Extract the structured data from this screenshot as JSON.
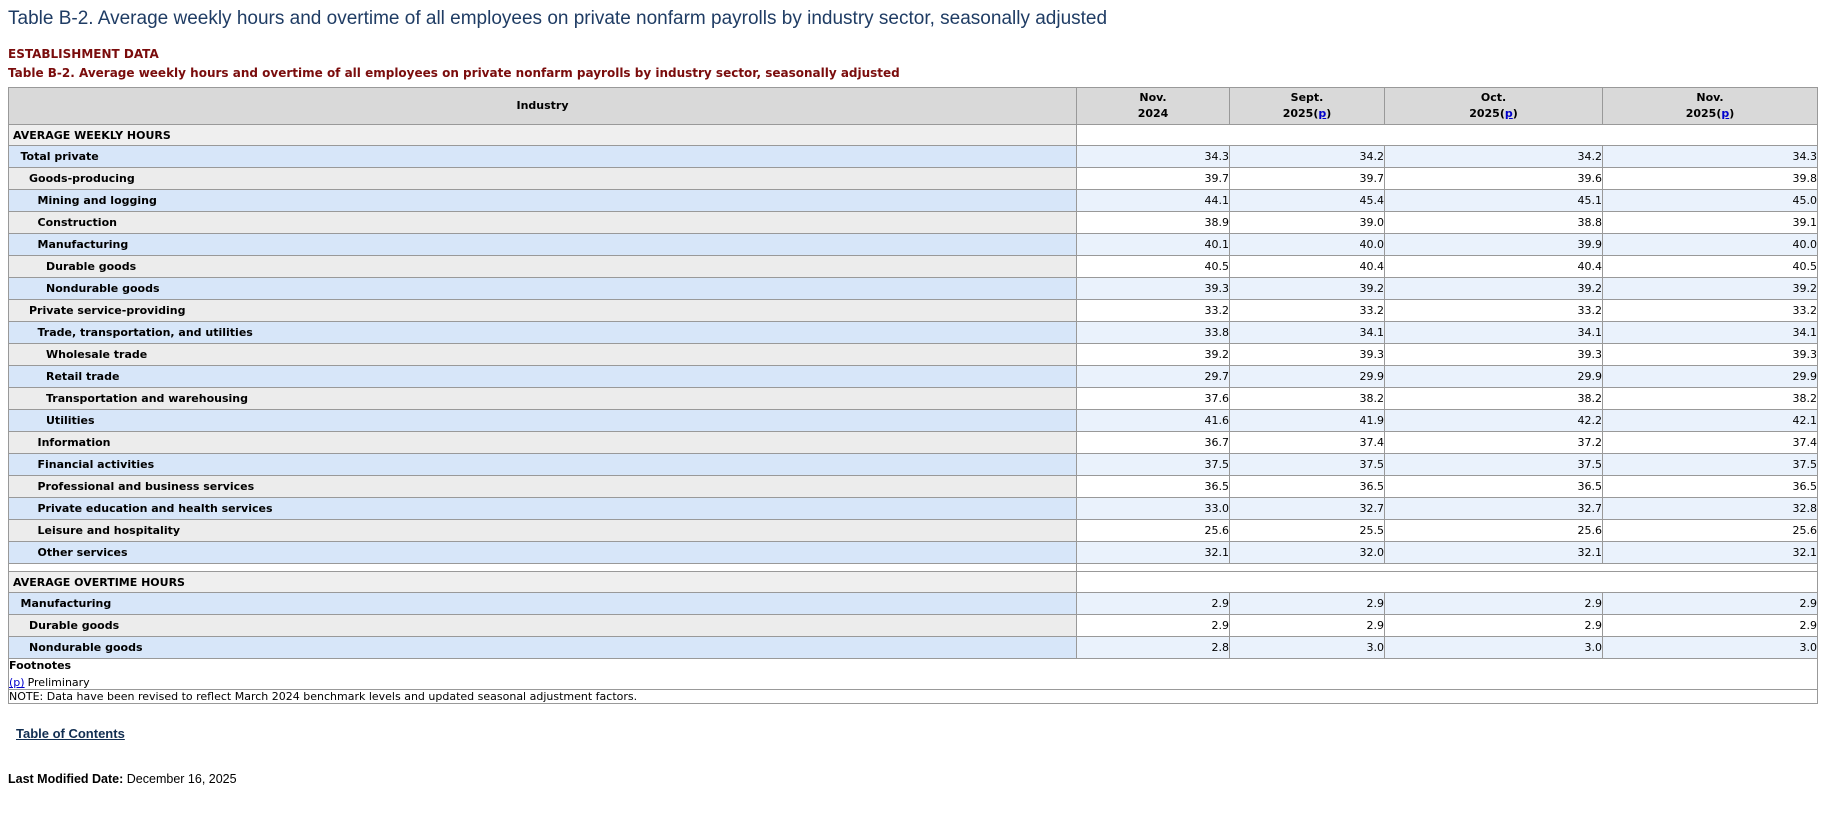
{
  "page": {
    "title": "Table B-2. Average weekly hours and overtime of all employees on private nonfarm payrolls by industry sector, seasonally adjusted",
    "section_label": "ESTABLISHMENT DATA",
    "table_title": "Table B-2. Average weekly hours and overtime of all employees on private nonfarm payrolls by industry sector, seasonally adjusted",
    "toc_link": "Table of Contents",
    "last_modified_label": "Last Modified Date:",
    "last_modified_value": "December 16, 2025"
  },
  "table": {
    "industry_header": "Industry",
    "columns": [
      {
        "month": "Nov.",
        "year": "2024",
        "preliminary": false
      },
      {
        "month": "Sept.",
        "year": "2025",
        "preliminary": true
      },
      {
        "month": "Oct.",
        "year": "2025",
        "preliminary": true
      },
      {
        "month": "Nov.",
        "year": "2025",
        "preliminary": true
      }
    ],
    "preliminary_link_text": "p",
    "rows": [
      {
        "type": "section",
        "label": "AVERAGE WEEKLY HOURS"
      },
      {
        "type": "data",
        "label": "Total private",
        "indent": 1,
        "values": [
          "34.3",
          "34.2",
          "34.2",
          "34.3"
        ]
      },
      {
        "type": "data",
        "label": "Goods-producing",
        "indent": 2,
        "values": [
          "39.7",
          "39.7",
          "39.6",
          "39.8"
        ]
      },
      {
        "type": "data",
        "label": "Mining and logging",
        "indent": 3,
        "values": [
          "44.1",
          "45.4",
          "45.1",
          "45.0"
        ]
      },
      {
        "type": "data",
        "label": "Construction",
        "indent": 3,
        "values": [
          "38.9",
          "39.0",
          "38.8",
          "39.1"
        ]
      },
      {
        "type": "data",
        "label": "Manufacturing",
        "indent": 3,
        "values": [
          "40.1",
          "40.0",
          "39.9",
          "40.0"
        ]
      },
      {
        "type": "data",
        "label": "Durable goods",
        "indent": 4,
        "values": [
          "40.5",
          "40.4",
          "40.4",
          "40.5"
        ]
      },
      {
        "type": "data",
        "label": "Nondurable goods",
        "indent": 4,
        "values": [
          "39.3",
          "39.2",
          "39.2",
          "39.2"
        ]
      },
      {
        "type": "data",
        "label": "Private service-providing",
        "indent": 2,
        "values": [
          "33.2",
          "33.2",
          "33.2",
          "33.2"
        ]
      },
      {
        "type": "data",
        "label": "Trade, transportation, and utilities",
        "indent": 3,
        "values": [
          "33.8",
          "34.1",
          "34.1",
          "34.1"
        ]
      },
      {
        "type": "data",
        "label": "Wholesale trade",
        "indent": 4,
        "values": [
          "39.2",
          "39.3",
          "39.3",
          "39.3"
        ]
      },
      {
        "type": "data",
        "label": "Retail trade",
        "indent": 4,
        "values": [
          "29.7",
          "29.9",
          "29.9",
          "29.9"
        ]
      },
      {
        "type": "data",
        "label": "Transportation and warehousing",
        "indent": 4,
        "values": [
          "37.6",
          "38.2",
          "38.2",
          "38.2"
        ]
      },
      {
        "type": "data",
        "label": "Utilities",
        "indent": 4,
        "values": [
          "41.6",
          "41.9",
          "42.2",
          "42.1"
        ]
      },
      {
        "type": "data",
        "label": "Information",
        "indent": 3,
        "values": [
          "36.7",
          "37.4",
          "37.2",
          "37.4"
        ]
      },
      {
        "type": "data",
        "label": "Financial activities",
        "indent": 3,
        "values": [
          "37.5",
          "37.5",
          "37.5",
          "37.5"
        ]
      },
      {
        "type": "data",
        "label": "Professional and business services",
        "indent": 3,
        "values": [
          "36.5",
          "36.5",
          "36.5",
          "36.5"
        ]
      },
      {
        "type": "data",
        "label": "Private education and health services",
        "indent": 3,
        "values": [
          "33.0",
          "32.7",
          "32.7",
          "32.8"
        ]
      },
      {
        "type": "data",
        "label": "Leisure and hospitality",
        "indent": 3,
        "values": [
          "25.6",
          "25.5",
          "25.6",
          "25.6"
        ]
      },
      {
        "type": "data",
        "label": "Other services",
        "indent": 3,
        "values": [
          "32.1",
          "32.0",
          "32.1",
          "32.1"
        ]
      },
      {
        "type": "spacer"
      },
      {
        "type": "section",
        "label": "AVERAGE OVERTIME HOURS"
      },
      {
        "type": "data",
        "label": "Manufacturing",
        "indent": 1,
        "values": [
          "2.9",
          "2.9",
          "2.9",
          "2.9"
        ]
      },
      {
        "type": "data",
        "label": "Durable goods",
        "indent": 2,
        "values": [
          "2.9",
          "2.9",
          "2.9",
          "2.9"
        ]
      },
      {
        "type": "data",
        "label": "Nondurable goods",
        "indent": 2,
        "values": [
          "2.8",
          "3.0",
          "3.0",
          "3.0"
        ]
      }
    ],
    "footnotes_label": "Footnotes",
    "footnote_link": "(p)",
    "footnote_text": "Preliminary",
    "note": "NOTE: Data have been revised to reflect March 2024 benchmark levels and updated seasonal adjustment factors."
  },
  "colors": {
    "page_title": "#1f3c64",
    "accent_maroon": "#7a0c0c",
    "link_blue": "#0000cc",
    "toc_link": "#112e51",
    "header_bg": "#d9d9d9",
    "section_bg": "#efefef",
    "stub_blue": "#d7e6f9",
    "stub_gray": "#ececec",
    "data_blue": "#eaf2fc",
    "border": "#999999"
  }
}
